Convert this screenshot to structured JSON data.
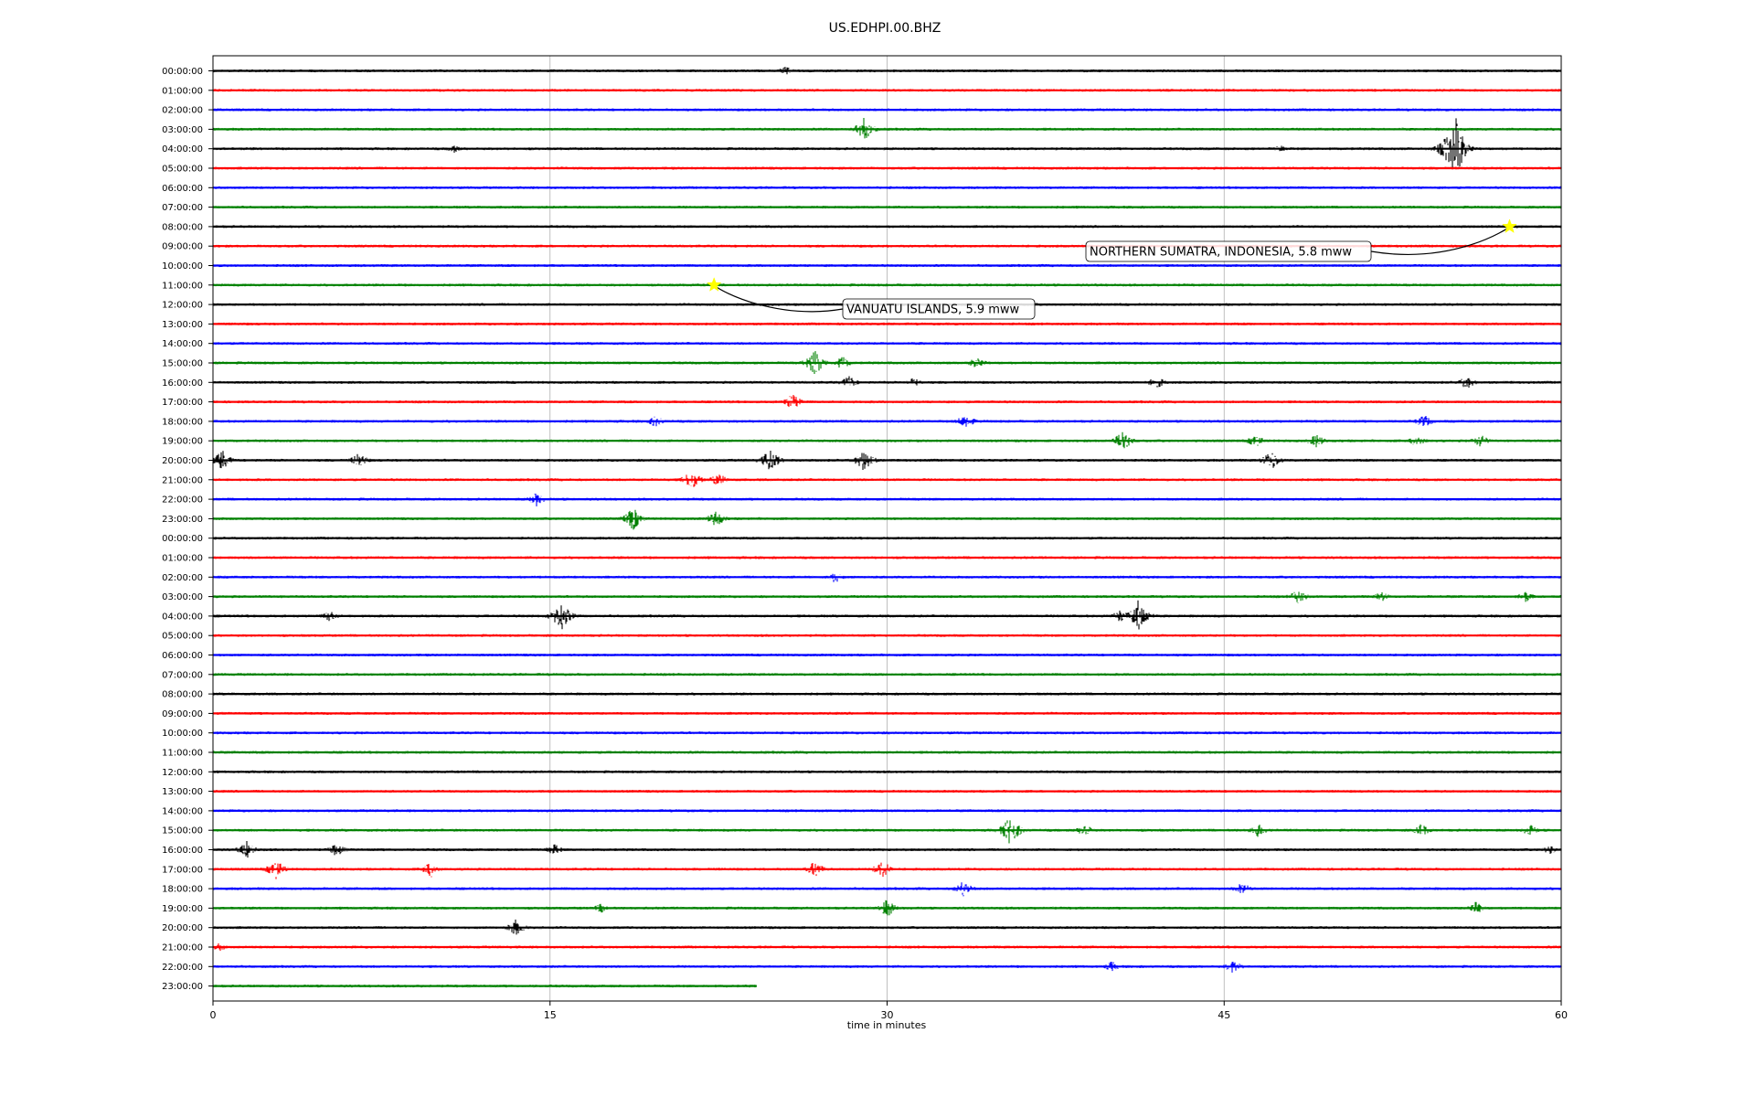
{
  "chart_data": {
    "type": "line",
    "title": "US.EDHPI.00.BHZ",
    "xlabel": "time in minutes",
    "ylabel": "",
    "xlim": [
      0,
      60
    ],
    "x_ticks": [
      "0",
      "15",
      "30",
      "45",
      "60"
    ],
    "grid": "vertical lines at 15, 30, 45",
    "trace_colors": [
      "#000000",
      "#ff0000",
      "#0000ff",
      "#008000"
    ],
    "rows": [
      "00:00:00",
      "01:00:00",
      "02:00:00",
      "03:00:00",
      "04:00:00",
      "05:00:00",
      "06:00:00",
      "07:00:00",
      "08:00:00",
      "09:00:00",
      "10:00:00",
      "11:00:00",
      "12:00:00",
      "13:00:00",
      "14:00:00",
      "15:00:00",
      "16:00:00",
      "17:00:00",
      "18:00:00",
      "19:00:00",
      "20:00:00",
      "21:00:00",
      "22:00:00",
      "23:00:00",
      "00:00:00",
      "01:00:00",
      "02:00:00",
      "03:00:00",
      "04:00:00",
      "05:00:00",
      "06:00:00",
      "07:00:00",
      "08:00:00",
      "09:00:00",
      "10:00:00",
      "11:00:00",
      "12:00:00",
      "13:00:00",
      "14:00:00",
      "15:00:00",
      "16:00:00",
      "17:00:00",
      "18:00:00",
      "19:00:00",
      "20:00:00",
      "21:00:00",
      "22:00:00",
      "23:00:00"
    ],
    "last_row_end_minute": 24.2,
    "events": [
      {
        "label": "NORTHERN SUMATRA, INDONESIA, 5.8 mww",
        "row": 8,
        "minute": 57.7,
        "marker_color": "#ffff00"
      },
      {
        "label": "VANUATU ISLANDS, 5.9 mww",
        "row": 11,
        "minute": 22.3,
        "marker_color": "#ffff00"
      }
    ],
    "bursts": [
      [
        0,
        25.5,
        5
      ],
      [
        3,
        29,
        14
      ],
      [
        4,
        10.7,
        5
      ],
      [
        4,
        47.5,
        4
      ],
      [
        4,
        54.9,
        18
      ],
      [
        4,
        55.3,
        40
      ],
      [
        15,
        26.8,
        16
      ],
      [
        15,
        28,
        8
      ],
      [
        15,
        34,
        8
      ],
      [
        16,
        28.3,
        8
      ],
      [
        16,
        31.2,
        6
      ],
      [
        16,
        42,
        8
      ],
      [
        16,
        55.8,
        8
      ],
      [
        17,
        25.8,
        10
      ],
      [
        18,
        19.7,
        7
      ],
      [
        18,
        33.5,
        9
      ],
      [
        18,
        53.9,
        8
      ],
      [
        19,
        40.5,
        13
      ],
      [
        19,
        46.4,
        8
      ],
      [
        19,
        49.1,
        8
      ],
      [
        19,
        53.6,
        8
      ],
      [
        19,
        56.4,
        8
      ],
      [
        20,
        0.4,
        12
      ],
      [
        20,
        6.5,
        9
      ],
      [
        20,
        24.8,
        14
      ],
      [
        20,
        29,
        14
      ],
      [
        20,
        47.1,
        12
      ],
      [
        21,
        21.3,
        12
      ],
      [
        21,
        22.5,
        8
      ],
      [
        22,
        14.4,
        8
      ],
      [
        23,
        18.7,
        14
      ],
      [
        23,
        22.4,
        10
      ],
      [
        26,
        27.7,
        7
      ],
      [
        27,
        48.3,
        9
      ],
      [
        27,
        52,
        6
      ],
      [
        27,
        58.4,
        7
      ],
      [
        28,
        15.5,
        18
      ],
      [
        28,
        41.2,
        20
      ],
      [
        28,
        40.4,
        8
      ],
      [
        28,
        5.2,
        7
      ],
      [
        39,
        35.5,
        18
      ],
      [
        39,
        38.8,
        8
      ],
      [
        39,
        46.5,
        8
      ],
      [
        39,
        53.8,
        8
      ],
      [
        39,
        58.6,
        7
      ],
      [
        40,
        1.5,
        10
      ],
      [
        40,
        5.5,
        8
      ],
      [
        40,
        15.2,
        7
      ],
      [
        40,
        59.5,
        6
      ],
      [
        41,
        2.8,
        12
      ],
      [
        41,
        9.7,
        10
      ],
      [
        41,
        26.8,
        10
      ],
      [
        41,
        29.8,
        11
      ],
      [
        42,
        33.4,
        10
      ],
      [
        42,
        45.8,
        8
      ],
      [
        43,
        30,
        11
      ],
      [
        43,
        17.3,
        6
      ],
      [
        43,
        56.2,
        8
      ],
      [
        44,
        13.5,
        10
      ],
      [
        45,
        0.3,
        5
      ],
      [
        46,
        40,
        6
      ],
      [
        46,
        45.4,
        8
      ]
    ]
  }
}
